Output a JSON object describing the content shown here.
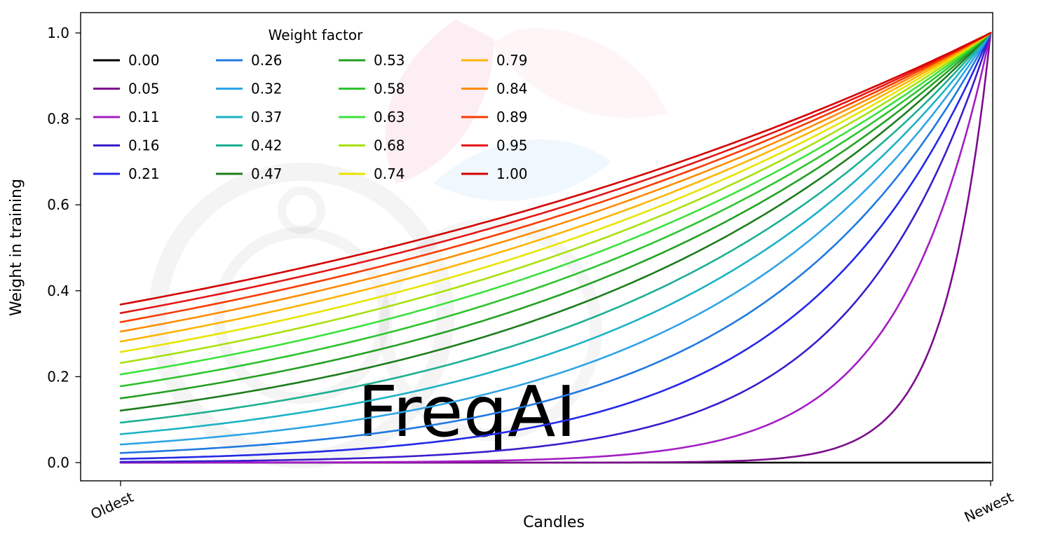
{
  "figure": {
    "background": "#ffffff",
    "watermark_text": "FreqAI"
  },
  "chart_data": {
    "type": "line",
    "title": "",
    "xlabel": "Candles",
    "ylabel": "Weight in training",
    "x_tick_labels": [
      "Oldest",
      "Newest"
    ],
    "y_ticks": [
      0,
      0.2,
      0.4,
      0.6,
      0.8,
      1.0
    ],
    "y_tick_labels": [
      "0.0",
      "0.2",
      "0.4",
      "0.6",
      "0.8",
      "1.0"
    ],
    "ylim": [
      0,
      1
    ],
    "grid": false,
    "legend": {
      "title": "Weight factor",
      "position": "upper-left",
      "columns": 4,
      "column_major": true,
      "frame": false
    },
    "curve_formula": "weight(t) = exp(-(1 - t) / weight_factor); t=0 at oldest candle, t=1 at newest candle; weight_factor=0 gives a flat line at 0",
    "series": [
      {
        "label": "0.00",
        "factor": 0.0,
        "color": "#000000"
      },
      {
        "label": "0.05",
        "factor": 0.0526,
        "color": "#7d0d8e"
      },
      {
        "label": "0.11",
        "factor": 0.1053,
        "color": "#a31ec4"
      },
      {
        "label": "0.16",
        "factor": 0.1579,
        "color": "#3c1dcb"
      },
      {
        "label": "0.21",
        "factor": 0.2105,
        "color": "#2428e8"
      },
      {
        "label": "0.26",
        "factor": 0.2632,
        "color": "#2079e0"
      },
      {
        "label": "0.32",
        "factor": 0.3158,
        "color": "#2fa4e6"
      },
      {
        "label": "0.37",
        "factor": 0.3684,
        "color": "#1cb2c4"
      },
      {
        "label": "0.42",
        "factor": 0.4211,
        "color": "#1bb091"
      },
      {
        "label": "0.47",
        "factor": 0.4737,
        "color": "#1d7d1d"
      },
      {
        "label": "0.53",
        "factor": 0.5263,
        "color": "#23a123"
      },
      {
        "label": "0.58",
        "factor": 0.5789,
        "color": "#2ec42e"
      },
      {
        "label": "0.63",
        "factor": 0.6316,
        "color": "#3be23b"
      },
      {
        "label": "0.68",
        "factor": 0.6842,
        "color": "#a9e00f"
      },
      {
        "label": "0.74",
        "factor": 0.7368,
        "color": "#e9e400"
      },
      {
        "label": "0.79",
        "factor": 0.7895,
        "color": "#ffb400"
      },
      {
        "label": "0.84",
        "factor": 0.8421,
        "color": "#ff8c00"
      },
      {
        "label": "0.89",
        "factor": 0.8947,
        "color": "#fa3a00"
      },
      {
        "label": "0.95",
        "factor": 0.9474,
        "color": "#e61515"
      },
      {
        "label": "1.00",
        "factor": 1.0,
        "color": "#d40000"
      }
    ]
  }
}
